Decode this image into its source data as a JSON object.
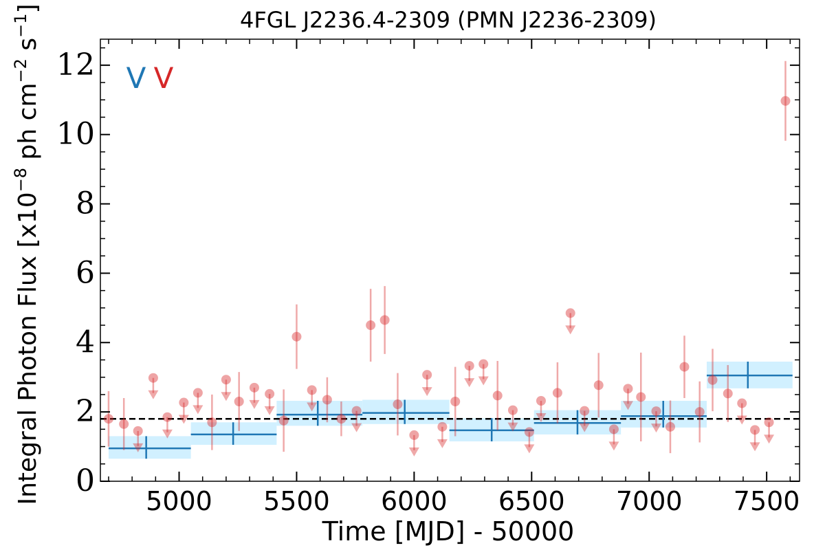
{
  "chart_data": {
    "type": "scatter",
    "title": "4FGL J2236.4-2309 (PMN J2236-2309)",
    "xlabel": "Time [MJD] - 50000",
    "ylabel": "Integral Photon Flux [x10$^{-8}$ ph cm$^{-2}$ s$^{-1}$]",
    "ylabel_parts": {
      "prefix": "Integral Photon Flux [x10",
      "exp1": "−8",
      "mid": " ph cm",
      "exp2": "−2",
      "mid2": " s",
      "exp3": "−1",
      "suffix": "]"
    },
    "xlim": [
      4665,
      7640
    ],
    "ylim": [
      0,
      12.75
    ],
    "xticks": [
      5000,
      5500,
      6000,
      6500,
      7000,
      7500
    ],
    "yticks": [
      0,
      2,
      4,
      6,
      8,
      10,
      12
    ],
    "xtick_labels": [
      "5000",
      "5500",
      "6000",
      "6500",
      "7000",
      "7500"
    ],
    "ytick_labels": [
      "0",
      "2",
      "4",
      "6",
      "8",
      "10",
      "12"
    ],
    "mean_flux": 1.8,
    "markers": [
      {
        "text": "V",
        "color": "#1f77b4"
      },
      {
        "text": "V",
        "color": "#d62728"
      }
    ],
    "series": [
      {
        "color": "#d62728",
        "detections": [
          {
            "x": 4700,
            "y": 1.8,
            "err": 0.8
          },
          {
            "x": 4765,
            "y": 1.65,
            "err": 0.75
          },
          {
            "x": 5140,
            "y": 1.7,
            "err": 0.8
          },
          {
            "x": 5255,
            "y": 2.3,
            "err": 0.85
          },
          {
            "x": 5445,
            "y": 1.75,
            "err": 0.9
          },
          {
            "x": 5500,
            "y": 4.17,
            "err": 0.93
          },
          {
            "x": 5630,
            "y": 2.35,
            "err": 0.65
          },
          {
            "x": 5690,
            "y": 1.8,
            "err": 0.5
          },
          {
            "x": 5815,
            "y": 4.5,
            "err": 1.05
          },
          {
            "x": 5875,
            "y": 4.65,
            "err": 0.98
          },
          {
            "x": 5930,
            "y": 2.22,
            "err": 0.9
          },
          {
            "x": 6175,
            "y": 2.3,
            "err": 1.0
          },
          {
            "x": 6355,
            "y": 2.47,
            "err": 1.0
          },
          {
            "x": 6610,
            "y": 2.55,
            "err": 0.88
          },
          {
            "x": 6785,
            "y": 2.77,
            "err": 0.93
          },
          {
            "x": 6965,
            "y": 2.43,
            "err": 1.28
          },
          {
            "x": 7090,
            "y": 1.57,
            "err": 0.76
          },
          {
            "x": 7150,
            "y": 3.3,
            "err": 0.9
          },
          {
            "x": 7215,
            "y": 2.0,
            "err": 0.88
          },
          {
            "x": 7270,
            "y": 2.92,
            "err": 0.9
          },
          {
            "x": 7335,
            "y": 2.53,
            "err": 0.82
          },
          {
            "x": 7580,
            "y": 10.97,
            "err": 1.15
          }
        ],
        "upper_limits": [
          {
            "x": 4825,
            "y": 1.45
          },
          {
            "x": 4890,
            "y": 2.98
          },
          {
            "x": 4950,
            "y": 1.85
          },
          {
            "x": 5020,
            "y": 2.27
          },
          {
            "x": 5080,
            "y": 2.55
          },
          {
            "x": 5200,
            "y": 2.93
          },
          {
            "x": 5320,
            "y": 2.7
          },
          {
            "x": 5385,
            "y": 2.52
          },
          {
            "x": 5565,
            "y": 2.63
          },
          {
            "x": 5755,
            "y": 2.03
          },
          {
            "x": 6000,
            "y": 1.33
          },
          {
            "x": 6055,
            "y": 3.07
          },
          {
            "x": 6120,
            "y": 1.57
          },
          {
            "x": 6235,
            "y": 3.33
          },
          {
            "x": 6295,
            "y": 3.38
          },
          {
            "x": 6420,
            "y": 2.05
          },
          {
            "x": 6490,
            "y": 1.42
          },
          {
            "x": 6540,
            "y": 2.32
          },
          {
            "x": 6665,
            "y": 4.85
          },
          {
            "x": 6725,
            "y": 2.03
          },
          {
            "x": 6850,
            "y": 1.5
          },
          {
            "x": 6910,
            "y": 2.67
          },
          {
            "x": 7030,
            "y": 2.02
          },
          {
            "x": 7395,
            "y": 2.25
          },
          {
            "x": 7450,
            "y": 1.48
          },
          {
            "x": 7510,
            "y": 1.7
          }
        ]
      },
      {
        "color": "#1f77b4",
        "bins": [
          {
            "x0": 4700,
            "x1": 5050,
            "y": 0.95,
            "lo": 0.65,
            "hi": 1.3,
            "xc": 4860
          },
          {
            "x0": 5050,
            "x1": 5415,
            "y": 1.35,
            "lo": 1.05,
            "hi": 1.7,
            "xc": 5230
          },
          {
            "x0": 5415,
            "x1": 5780,
            "y": 1.92,
            "lo": 1.6,
            "hi": 2.32,
            "xc": 5590
          },
          {
            "x0": 5780,
            "x1": 6150,
            "y": 1.97,
            "lo": 1.65,
            "hi": 2.35,
            "xc": 5960
          },
          {
            "x0": 6150,
            "x1": 6510,
            "y": 1.47,
            "lo": 1.15,
            "hi": 1.82,
            "xc": 6330
          },
          {
            "x0": 6510,
            "x1": 6880,
            "y": 1.68,
            "lo": 1.35,
            "hi": 2.05,
            "xc": 6695
          },
          {
            "x0": 6880,
            "x1": 7245,
            "y": 1.88,
            "lo": 1.55,
            "hi": 2.32,
            "xc": 7060
          },
          {
            "x0": 7245,
            "x1": 7610,
            "y": 3.05,
            "lo": 2.68,
            "hi": 3.45,
            "xc": 7420
          }
        ],
        "band_color": "#cceeff"
      }
    ]
  }
}
